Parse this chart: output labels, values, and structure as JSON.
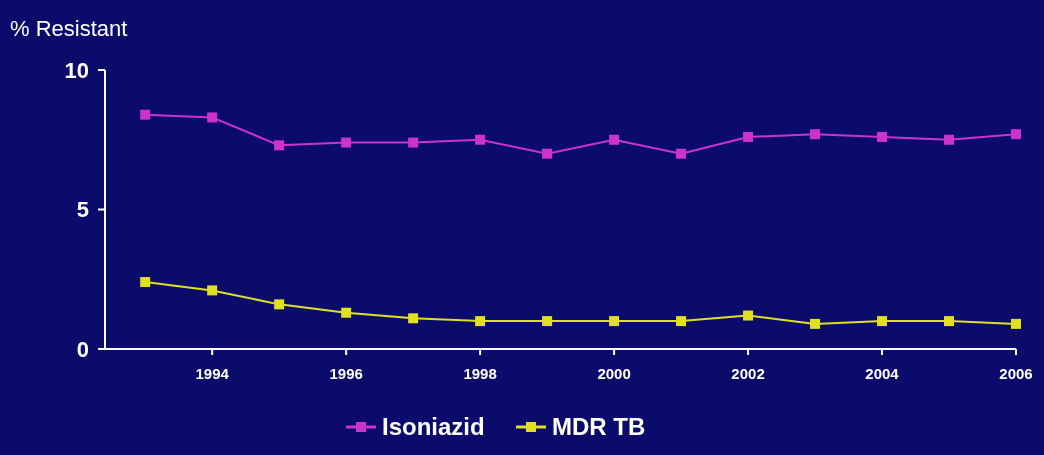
{
  "chart_data": {
    "type": "line",
    "ylabel": "% Resistant",
    "x": [
      1993,
      1994,
      1995,
      1996,
      1997,
      1998,
      1999,
      2000,
      2001,
      2002,
      2003,
      2004,
      2005,
      2006
    ],
    "xlim": [
      1992.4,
      2006
    ],
    "xticks": [
      1994,
      1996,
      1998,
      2000,
      2002,
      2004,
      2006
    ],
    "ylim": [
      0,
      10
    ],
    "yticks": [
      0,
      5,
      10
    ],
    "marker": "square",
    "legend": "bottom",
    "grid": false,
    "series": [
      {
        "name": "Isoniazid",
        "color": "#cc33cc",
        "values": [
          8.4,
          8.3,
          7.3,
          7.4,
          7.4,
          7.5,
          7.0,
          7.5,
          7.0,
          7.6,
          7.7,
          7.6,
          7.5,
          7.7
        ]
      },
      {
        "name": "MDR TB",
        "color": "#e0e020",
        "values": [
          2.4,
          2.1,
          1.6,
          1.3,
          1.1,
          1.0,
          1.0,
          1.0,
          1.0,
          1.2,
          0.9,
          1.0,
          1.0,
          0.9
        ]
      }
    ]
  }
}
